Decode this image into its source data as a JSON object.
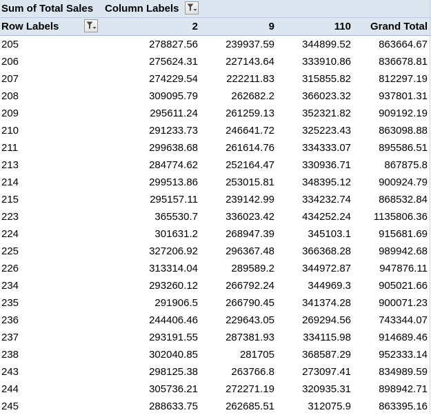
{
  "pivot": {
    "title": "Sum of Total Sales",
    "column_labels": "Column Labels",
    "row_labels": "Row Labels",
    "column_headers": [
      "2",
      "9",
      "110",
      "Grand Total"
    ],
    "filter_icon": "filter-dropdown-icon",
    "rows": [
      {
        "label": "205",
        "values": [
          "278827.56",
          "239937.59",
          "344899.52",
          "863664.67"
        ]
      },
      {
        "label": "206",
        "values": [
          "275624.31",
          "227143.64",
          "333910.86",
          "836678.81"
        ]
      },
      {
        "label": "207",
        "values": [
          "274229.54",
          "222211.83",
          "315855.82",
          "812297.19"
        ]
      },
      {
        "label": "208",
        "values": [
          "309095.79",
          "262682.2",
          "366023.32",
          "937801.31"
        ]
      },
      {
        "label": "209",
        "values": [
          "295611.24",
          "261259.13",
          "352321.82",
          "909192.19"
        ]
      },
      {
        "label": "210",
        "values": [
          "291233.73",
          "246641.72",
          "325223.43",
          "863098.88"
        ]
      },
      {
        "label": "211",
        "values": [
          "299638.68",
          "261614.76",
          "334333.07",
          "895586.51"
        ]
      },
      {
        "label": "213",
        "values": [
          "284774.62",
          "252164.47",
          "330936.71",
          "867875.8"
        ]
      },
      {
        "label": "214",
        "values": [
          "299513.86",
          "253015.81",
          "348395.12",
          "900924.79"
        ]
      },
      {
        "label": "215",
        "values": [
          "295157.11",
          "239142.99",
          "334232.74",
          "868532.84"
        ]
      },
      {
        "label": "223",
        "values": [
          "365530.7",
          "336023.42",
          "434252.24",
          "1135806.36"
        ]
      },
      {
        "label": "224",
        "values": [
          "301631.2",
          "268947.39",
          "345103.1",
          "915681.69"
        ]
      },
      {
        "label": "225",
        "values": [
          "327206.92",
          "296367.48",
          "366368.28",
          "989942.68"
        ]
      },
      {
        "label": "226",
        "values": [
          "313314.04",
          "289589.2",
          "344972.87",
          "947876.11"
        ]
      },
      {
        "label": "234",
        "values": [
          "293260.12",
          "266792.24",
          "344969.3",
          "905021.66"
        ]
      },
      {
        "label": "235",
        "values": [
          "291906.5",
          "266790.45",
          "341374.28",
          "900071.23"
        ]
      },
      {
        "label": "236",
        "values": [
          "244406.46",
          "229643.05",
          "269294.56",
          "743344.07"
        ]
      },
      {
        "label": "237",
        "values": [
          "293191.55",
          "287381.93",
          "334115.98",
          "914689.46"
        ]
      },
      {
        "label": "238",
        "values": [
          "302040.85",
          "281705",
          "368587.29",
          "952333.14"
        ]
      },
      {
        "label": "243",
        "values": [
          "298125.38",
          "263766.8",
          "273097.41",
          "834989.59"
        ]
      },
      {
        "label": "244",
        "values": [
          "305736.21",
          "272271.19",
          "320935.31",
          "898942.71"
        ]
      },
      {
        "label": "245",
        "values": [
          "288633.75",
          "262685.51",
          "312075.9",
          "863395.16"
        ]
      }
    ]
  }
}
